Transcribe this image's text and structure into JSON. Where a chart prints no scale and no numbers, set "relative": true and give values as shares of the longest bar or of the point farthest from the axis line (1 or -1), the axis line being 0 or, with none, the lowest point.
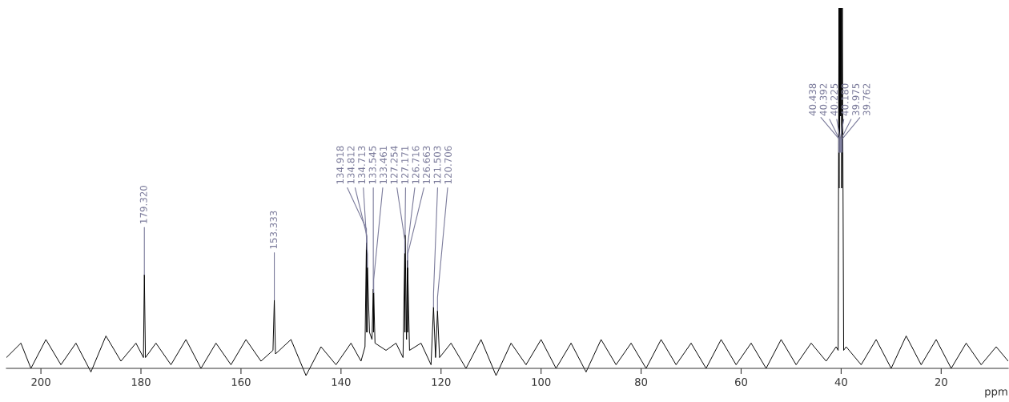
{
  "chart_data": {
    "type": "line",
    "relative": true,
    "xlabel": "ppm",
    "xlim": [
      206.9,
      6.6
    ],
    "xticks": [
      200,
      180,
      160,
      140,
      120,
      100,
      80,
      60,
      40,
      20
    ],
    "tick_labels": "x",
    "grid": false,
    "legend": false,
    "marker": "none",
    "line_style": "solid",
    "series": [
      {
        "color": "#000000",
        "x": [
          206.9,
          204,
          202,
          199,
          196,
          193,
          190,
          187,
          184,
          181,
          179.5,
          179.32,
          179.1,
          177,
          174,
          171,
          168,
          165,
          162,
          159,
          156,
          153.6,
          153.333,
          153.1,
          150,
          147,
          144,
          141,
          138,
          136,
          135.2,
          134.918,
          134.86,
          134.812,
          134.76,
          134.713,
          134.3,
          133.8,
          133.545,
          133.5,
          133.461,
          133.2,
          131,
          129,
          127.6,
          127.254,
          127.21,
          127.171,
          126.9,
          126.716,
          126.69,
          126.663,
          126.3,
          124,
          122,
          121.503,
          121.1,
          120.706,
          120.3,
          118,
          115,
          112,
          109,
          106,
          103,
          100,
          97,
          94,
          91,
          88,
          85,
          82,
          79,
          76,
          73,
          70,
          67,
          64,
          61,
          58,
          55,
          52,
          49,
          46,
          43,
          41,
          40.6,
          40.438,
          40.41,
          40.392,
          40.3,
          40.225,
          40.2,
          40.18,
          40.08,
          39.975,
          39.9,
          39.762,
          39.5,
          39,
          36,
          33,
          30,
          27,
          24,
          21,
          18,
          15,
          12,
          9,
          6.6
        ],
        "values": [
          0.03,
          0.07,
          0.0,
          0.08,
          0.01,
          0.07,
          -0.01,
          0.09,
          0.02,
          0.07,
          0.03,
          0.26,
          0.03,
          0.07,
          0.01,
          0.08,
          0.0,
          0.07,
          0.01,
          0.08,
          0.02,
          0.05,
          0.19,
          0.04,
          0.08,
          -0.02,
          0.06,
          0.01,
          0.07,
          0.02,
          0.06,
          0.35,
          0.1,
          0.33,
          0.1,
          0.28,
          0.1,
          0.08,
          0.22,
          0.1,
          0.21,
          0.07,
          0.05,
          0.07,
          0.03,
          0.32,
          0.1,
          0.37,
          0.08,
          0.3,
          0.1,
          0.28,
          0.05,
          0.07,
          0.01,
          0.17,
          0.03,
          0.16,
          0.03,
          0.07,
          0.0,
          0.08,
          -0.02,
          0.07,
          0.01,
          0.08,
          0.0,
          0.07,
          -0.01,
          0.08,
          0.01,
          0.07,
          0.0,
          0.08,
          0.01,
          0.07,
          0.0,
          0.08,
          0.01,
          0.07,
          0.0,
          0.08,
          0.01,
          0.07,
          0.02,
          0.06,
          0.05,
          1,
          0.5,
          1,
          0.6,
          1,
          0.7,
          1,
          0.7,
          1,
          0.5,
          1,
          0.05,
          0.06,
          0.01,
          0.08,
          0.0,
          0.09,
          0.01,
          0.08,
          0.0,
          0.07,
          0.01,
          0.06,
          0.02
        ]
      }
    ],
    "annotations": [
      {
        "text": "179.320",
        "x": 179.32,
        "y": 0.26
      },
      {
        "text": "153.333",
        "x": 153.333,
        "y": 0.19
      },
      {
        "text": "134.918",
        "x": 134.918,
        "y": 0.35
      },
      {
        "text": "134.812",
        "x": 134.812,
        "y": 0.33
      },
      {
        "text": "134.713",
        "x": 134.713,
        "y": 0.28
      },
      {
        "text": "133.545",
        "x": 133.545,
        "y": 0.22
      },
      {
        "text": "133.461",
        "x": 133.461,
        "y": 0.21
      },
      {
        "text": "127.254",
        "x": 127.254,
        "y": 0.32
      },
      {
        "text": "127.171",
        "x": 127.171,
        "y": 0.37
      },
      {
        "text": "126.716",
        "x": 126.716,
        "y": 0.3
      },
      {
        "text": "126.663",
        "x": 126.663,
        "y": 0.28
      },
      {
        "text": "121.503",
        "x": 121.503,
        "y": 0.17
      },
      {
        "text": "120.706",
        "x": 120.706,
        "y": 0.16
      },
      {
        "text": "40.438",
        "x": 40.438,
        "y": 0.6
      },
      {
        "text": "40.392",
        "x": 40.392,
        "y": 0.6
      },
      {
        "text": "40.225",
        "x": 40.225,
        "y": 0.6
      },
      {
        "text": "40.180",
        "x": 40.18,
        "y": 0.6
      },
      {
        "text": "39.975",
        "x": 39.975,
        "y": 0.6
      },
      {
        "text": "39.762",
        "x": 39.762,
        "y": 0.6
      }
    ]
  }
}
